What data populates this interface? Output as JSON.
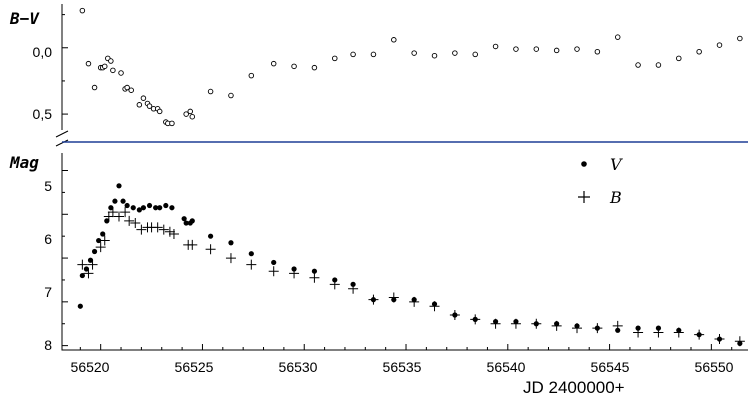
{
  "chart_data": [
    {
      "type": "scatter",
      "panel": "top",
      "ylabel": "B−V",
      "y_ticks": [
        "0,0",
        "0,5"
      ],
      "ylim": [
        0.62,
        -0.33
      ],
      "y_inverted": true,
      "series": [
        {
          "marker": "open-circle",
          "x": [
            56519.1,
            56519.4,
            56519.7,
            56520.0,
            56520.1,
            56520.2,
            56520.35,
            56520.5,
            56520.6,
            56521.0,
            56521.2,
            56521.3,
            56521.5,
            56521.9,
            56522.1,
            56522.3,
            56522.4,
            56522.6,
            56522.8,
            56522.9,
            56523.2,
            56523.3,
            56523.5,
            56524.2,
            56524.4,
            56524.5,
            56525.4,
            56526.4,
            56527.4,
            56528.5,
            56529.5,
            56530.5,
            56531.5,
            56532.4,
            56533.4,
            56534.4,
            56535.4,
            56536.4,
            56537.4,
            56538.4,
            56539.4,
            56540.4,
            56541.4,
            56542.4,
            56543.4,
            56544.4,
            56545.4,
            56546.4,
            56547.4,
            56548.4,
            56549.4,
            56550.4,
            56551.4
          ],
          "y": [
            -0.28,
            0.12,
            0.3,
            0.15,
            0.15,
            0.14,
            0.08,
            0.1,
            0.17,
            0.19,
            0.31,
            0.3,
            0.32,
            0.43,
            0.38,
            0.42,
            0.44,
            0.46,
            0.46,
            0.48,
            0.56,
            0.57,
            0.57,
            0.5,
            0.48,
            0.52,
            0.33,
            0.36,
            0.21,
            0.12,
            0.14,
            0.15,
            0.08,
            0.05,
            0.05,
            -0.06,
            0.04,
            0.06,
            0.04,
            0.05,
            -0.01,
            0.01,
            0.01,
            0.02,
            0.01,
            0.03,
            -0.08,
            0.13,
            0.13,
            0.08,
            0.03,
            -0.02,
            -0.07
          ]
        }
      ]
    },
    {
      "type": "scatter",
      "panel": "bottom",
      "ylabel": "Mag",
      "xlabel": "JD 2400000+",
      "xlim": [
        56518.1,
        56551.8
      ],
      "ylim": [
        8.1,
        3.6
      ],
      "y_inverted": true,
      "x_ticks": [
        "56520",
        "56525",
        "56530",
        "56535",
        "56540",
        "56545",
        "56550"
      ],
      "y_ticks": [
        "5",
        "6",
        "7",
        "8"
      ],
      "legend_position": "top-right",
      "series": [
        {
          "name": "V",
          "marker": "filled-circle",
          "x": [
            56519.0,
            56519.1,
            56519.3,
            56519.5,
            56519.7,
            56519.9,
            56520.1,
            56520.3,
            56520.5,
            56520.7,
            56520.9,
            56521.1,
            56521.3,
            56521.6,
            56521.9,
            56522.1,
            56522.4,
            56522.7,
            56522.9,
            56523.2,
            56523.5,
            56524.1,
            56524.2,
            56524.4,
            56524.5,
            56525.4,
            56526.4,
            56527.4,
            56528.5,
            56529.5,
            56530.5,
            56531.5,
            56532.4,
            56533.4,
            56534.4,
            56535.4,
            56536.4,
            56537.4,
            56538.4,
            56539.4,
            56540.4,
            56541.4,
            56542.4,
            56543.4,
            56544.4,
            56545.4,
            56546.4,
            56547.4,
            56548.4,
            56549.4,
            56550.4,
            56551.4
          ],
          "y": [
            7.1,
            6.4,
            6.25,
            6.05,
            5.85,
            5.6,
            5.45,
            5.15,
            4.85,
            4.7,
            4.35,
            4.7,
            4.8,
            4.85,
            4.9,
            4.85,
            4.8,
            4.85,
            4.85,
            4.8,
            4.85,
            5.1,
            5.2,
            5.2,
            5.15,
            5.5,
            5.65,
            5.9,
            6.1,
            6.25,
            6.3,
            6.5,
            6.6,
            6.95,
            6.95,
            6.95,
            7.05,
            7.3,
            7.4,
            7.45,
            7.45,
            7.5,
            7.5,
            7.55,
            7.6,
            7.65,
            7.6,
            7.6,
            7.65,
            7.75,
            7.85,
            7.95
          ]
        },
        {
          "name": "B",
          "marker": "plus",
          "x": [
            56519.1,
            56519.4,
            56519.6,
            56520.0,
            56520.2,
            56520.4,
            56520.6,
            56520.9,
            56521.2,
            56521.4,
            56521.7,
            56522.0,
            56522.3,
            56522.5,
            56522.8,
            56523.1,
            56523.4,
            56523.6,
            56524.3,
            56524.5,
            56525.4,
            56526.4,
            56527.4,
            56528.5,
            56529.5,
            56530.5,
            56531.5,
            56532.4,
            56533.4,
            56534.4,
            56535.4,
            56536.4,
            56537.4,
            56538.4,
            56539.4,
            56540.4,
            56541.4,
            56542.4,
            56543.4,
            56544.4,
            56545.4,
            56546.4,
            56547.4,
            56548.4,
            56549.4,
            56550.4,
            56551.4
          ],
          "y": [
            6.15,
            6.35,
            6.15,
            5.75,
            5.6,
            5.05,
            4.95,
            5.05,
            4.95,
            5.15,
            5.2,
            5.35,
            5.3,
            5.3,
            5.3,
            5.35,
            5.4,
            5.45,
            5.7,
            5.7,
            5.8,
            6.0,
            6.15,
            6.3,
            6.35,
            6.45,
            6.6,
            6.7,
            6.95,
            6.9,
            7.0,
            7.1,
            7.3,
            7.4,
            7.5,
            7.5,
            7.5,
            7.55,
            7.6,
            7.6,
            7.55,
            7.7,
            7.7,
            7.7,
            7.75,
            7.85,
            7.9
          ]
        }
      ]
    }
  ]
}
